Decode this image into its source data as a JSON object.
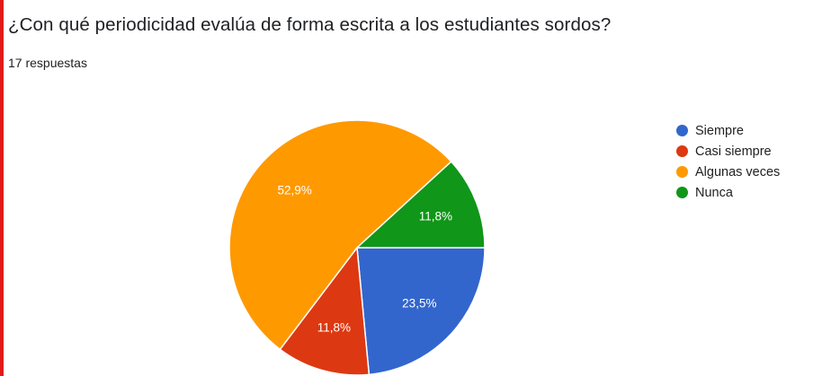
{
  "question": "¿Con qué periodicidad evalúa de forma escrita a los estudiantes sordos?",
  "response_count": "17 respuestas",
  "chart_data": {
    "type": "pie",
    "title": "¿Con qué periodicidad evalúa de forma escrita a los estudiantes sordos?",
    "categories": [
      "Siempre",
      "Casi siempre",
      "Algunas veces",
      "Nunca"
    ],
    "values": [
      23.5,
      11.8,
      52.9,
      11.8
    ],
    "labels": [
      "23,5%",
      "11,8%",
      "52,9%",
      "11,8%"
    ],
    "colors": [
      "#3366cc",
      "#dc3912",
      "#ff9900",
      "#109618"
    ],
    "legend_position": "right"
  },
  "legend": [
    {
      "label": "Siempre",
      "color": "#3366cc"
    },
    {
      "label": "Casi siempre",
      "color": "#dc3912"
    },
    {
      "label": "Algunas veces",
      "color": "#ff9900"
    },
    {
      "label": "Nunca",
      "color": "#109618"
    }
  ]
}
